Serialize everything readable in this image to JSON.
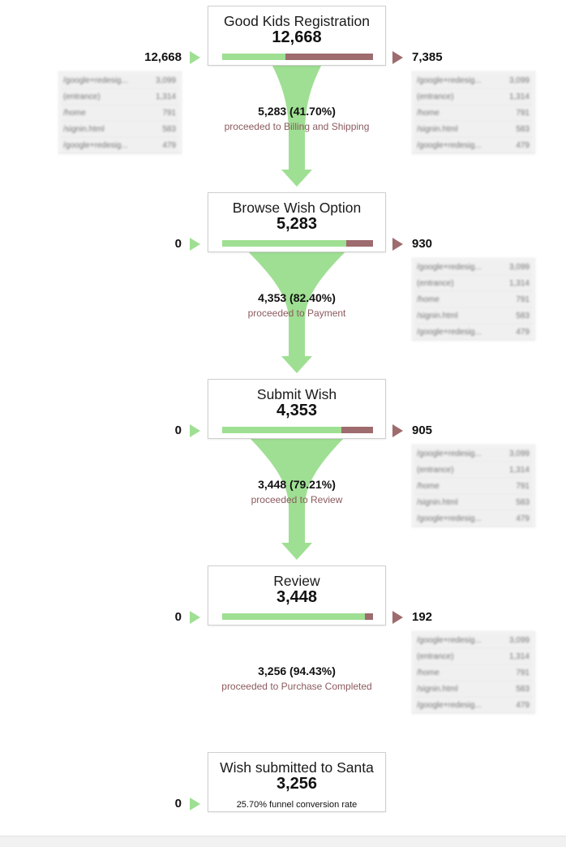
{
  "colors": {
    "continue": "#9fdf93",
    "exit": "#9e6b6e"
  },
  "chart_data": {
    "type": "funnel",
    "stages": [
      {
        "name": "Good Kids Registration",
        "count": "12,668",
        "entrances": "12,668",
        "exits": "7,385",
        "entered": 12668,
        "dropped": 7385
      },
      {
        "name": "Browse Wish Option",
        "count": "5,283",
        "entrances": "0",
        "exits": "930",
        "entered": 5283,
        "dropped": 930
      },
      {
        "name": "Submit Wish",
        "count": "4,353",
        "entrances": "0",
        "exits": "905",
        "entered": 4353,
        "dropped": 905
      },
      {
        "name": "Review",
        "count": "3,448",
        "entrances": "0",
        "exits": "192",
        "entered": 3448,
        "dropped": 192
      },
      {
        "name": "Wish submitted to Santa",
        "count": "3,256",
        "entrances": "0",
        "conversion_note": "25.70% funnel conversion rate"
      }
    ],
    "flows": [
      {
        "value": "5,283 (41.70%)",
        "label": "proceeded to Billing and Shipping"
      },
      {
        "value": "4,353 (82.40%)",
        "label": "proceeded to Payment"
      },
      {
        "value": "3,448 (79.21%)",
        "label": "proceeded to Review"
      },
      {
        "value": "3,256 (94.43%)",
        "label": "proceeded to Purchase Completed"
      }
    ],
    "source_tables": [
      [
        {
          "page": "/google+redesig...",
          "value": "3,099"
        },
        {
          "page": "(entrance)",
          "value": "1,314"
        },
        {
          "page": "/home",
          "value": "791"
        },
        {
          "page": "/signin.html",
          "value": "583"
        },
        {
          "page": "/google+redesig...",
          "value": "479"
        }
      ]
    ]
  }
}
